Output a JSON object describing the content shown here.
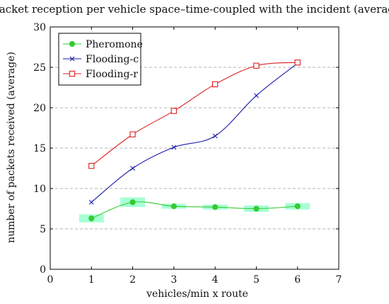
{
  "chart_data": {
    "type": "line",
    "title": "Packet reception per vehicle space–time-coupled with the incident (average)",
    "xlabel": "vehicles/min x route",
    "ylabel": "number of packets received (average)",
    "xlim": [
      0,
      7
    ],
    "ylim": [
      0,
      30
    ],
    "xticks": [
      "0",
      "1",
      "2",
      "3",
      "4",
      "5",
      "6",
      "7"
    ],
    "yticks": [
      "0",
      "5",
      "10",
      "15",
      "20",
      "25",
      "30"
    ],
    "grid": "horizontal-dashed",
    "legend_position": "top-left",
    "x": [
      1,
      2,
      3,
      4,
      5,
      6
    ],
    "series": [
      {
        "name": "Pheromone",
        "color": "#33cc33",
        "marker": "circle",
        "values": [
          6.3,
          8.3,
          7.8,
          7.7,
          7.5,
          7.8
        ],
        "error_band": [
          0.5,
          0.6,
          0.3,
          0.3,
          0.4,
          0.4
        ],
        "band_color": "#99ffcc"
      },
      {
        "name": "Flooding-c",
        "color": "#1a1aa8",
        "marker": "x",
        "values": [
          8.3,
          12.5,
          15.1,
          16.5,
          21.5,
          25.5
        ]
      },
      {
        "name": "Flooding-r",
        "color": "#dd1f1f",
        "marker": "square",
        "values": [
          12.8,
          16.7,
          19.6,
          22.9,
          25.2,
          25.6
        ]
      }
    ]
  }
}
